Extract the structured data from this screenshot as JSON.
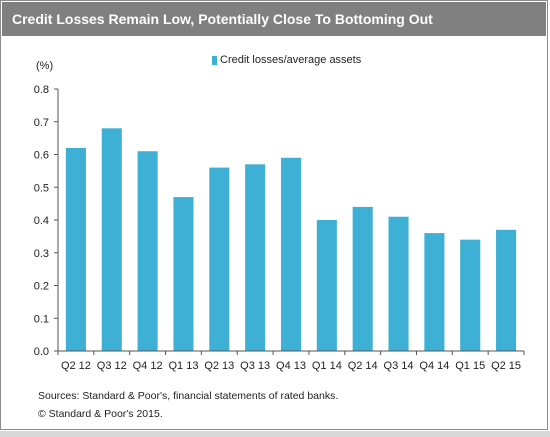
{
  "title": "Credit Losses  Remain Low, Potentially Close To Bottoming Out",
  "unit_label": "(%)",
  "sources": "Sources: Standard & Poor's,  financial statements of rated banks.",
  "copyright": "© Standard & Poor's 2015.",
  "colors": {
    "bar": "#3fb0d5",
    "title_bg": "#808080"
  },
  "chart_data": {
    "type": "bar",
    "categories": [
      "Q2 12",
      "Q3 12",
      "Q4 12",
      "Q1 13",
      "Q2 13",
      "Q3 13",
      "Q4 13",
      "Q1 14",
      "Q2 14",
      "Q3 14",
      "Q4 14",
      "Q1 15",
      "Q2 15"
    ],
    "series": [
      {
        "name": "Credit losses/average assets",
        "values": [
          0.62,
          0.68,
          0.61,
          0.47,
          0.56,
          0.57,
          0.59,
          0.4,
          0.44,
          0.41,
          0.36,
          0.34,
          0.37
        ]
      }
    ],
    "y_ticks": [
      "0.0",
      "0.1",
      "0.2",
      "0.3",
      "0.4",
      "0.5",
      "0.6",
      "0.7",
      "0.8"
    ],
    "ylim": [
      0,
      0.8
    ],
    "grid": false,
    "legend_position": "top"
  }
}
